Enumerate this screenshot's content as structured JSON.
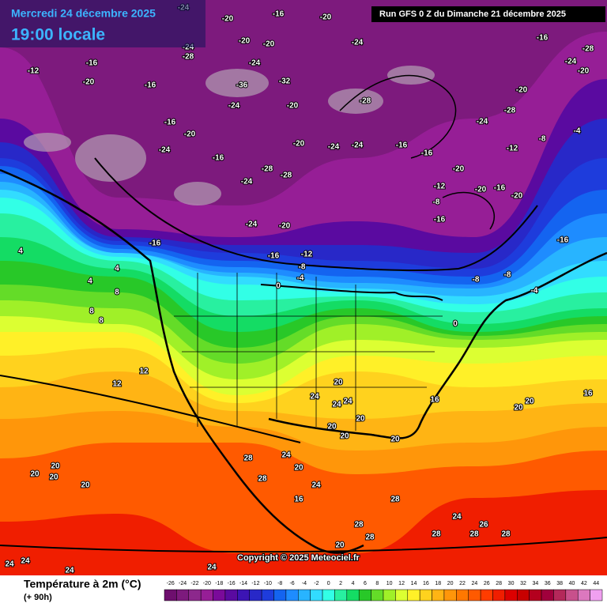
{
  "header": {
    "date": "Mercredi 24 décembre 2025",
    "time": "19:00 locale",
    "run": "Run GFS 0 Z du Dimanche 21 décembre 2025"
  },
  "map": {
    "copyright": "Copyright © 2025 Meteociel.fr",
    "labels": [
      -24,
      -20,
      -16,
      -20,
      -24,
      -20,
      -20,
      -24,
      -28,
      -16,
      -12,
      -20,
      -16,
      -24,
      -36,
      -32,
      -28,
      -20,
      -24,
      -20,
      -16,
      -24,
      -16,
      -28,
      -24,
      -28,
      -20,
      -24,
      -24,
      -16,
      -16,
      -20,
      -12,
      -8,
      -16,
      -20,
      -16,
      -20,
      -12,
      -8,
      -16,
      -4,
      -20,
      -24,
      -28,
      -16,
      -24,
      -28,
      -20,
      -16,
      -20,
      -24,
      -16,
      -12,
      -8,
      -8,
      -8,
      -4,
      -4,
      0,
      0,
      4,
      4,
      4,
      8,
      8,
      8,
      12,
      12,
      16,
      20,
      20,
      20,
      24,
      24,
      24,
      20,
      20,
      20,
      16,
      20,
      28,
      28,
      24,
      20,
      24,
      16,
      28,
      28,
      28,
      28,
      24,
      26,
      20,
      20,
      20,
      20,
      24,
      24,
      24,
      24,
      28,
      28,
      20
    ]
  },
  "legend": {
    "title": "Température à 2m (°C)",
    "lead": "(+ 90h)",
    "ticks": [
      -26,
      -24,
      -22,
      -20,
      -18,
      -16,
      -14,
      -12,
      -10,
      -8,
      -6,
      -4,
      -2,
      0,
      2,
      4,
      6,
      8,
      10,
      12,
      14,
      16,
      18,
      20,
      22,
      24,
      26,
      28,
      30,
      32,
      34,
      36,
      38,
      40,
      42,
      44
    ],
    "colors": [
      "#6e0f6e",
      "#7d1a7d",
      "#8c288c",
      "#961e96",
      "#7a0a9a",
      "#5a0aa0",
      "#3c14b4",
      "#2828c8",
      "#1e3cdc",
      "#1464f0",
      "#1e8cff",
      "#28b4ff",
      "#32dcff",
      "#32ffe6",
      "#28f0a0",
      "#14dc64",
      "#28c828",
      "#64dc28",
      "#a0f028",
      "#dcff32",
      "#fff028",
      "#ffd21e",
      "#ffb414",
      "#ff960a",
      "#ff7800",
      "#ff5a00",
      "#ff3c00",
      "#f01e00",
      "#dc0000",
      "#c80000",
      "#b4001e",
      "#a0003c",
      "#b4285a",
      "#c8508c",
      "#dc78be",
      "#f0a0f0"
    ]
  }
}
